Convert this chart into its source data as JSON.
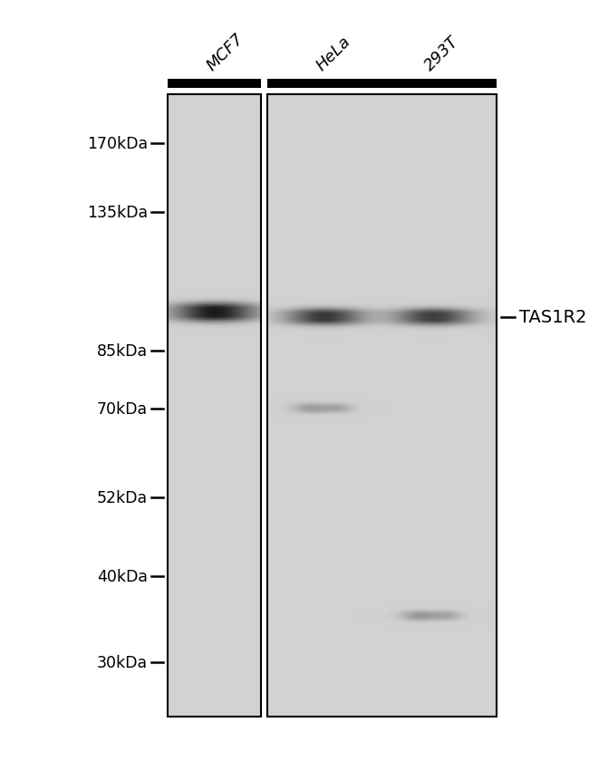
{
  "white_bg": "#ffffff",
  "gel_bg": 210,
  "lane_labels": [
    "MCF7",
    "HeLa",
    "293T"
  ],
  "mw_labels": [
    "170kDa",
    "135kDa",
    "85kDa",
    "70kDa",
    "52kDa",
    "40kDa",
    "30kDa"
  ],
  "mw_values": [
    170,
    135,
    85,
    70,
    52,
    40,
    30
  ],
  "protein_label": "TAS1R2",
  "label_fontsize": 13,
  "mw_fontsize": 12.5
}
